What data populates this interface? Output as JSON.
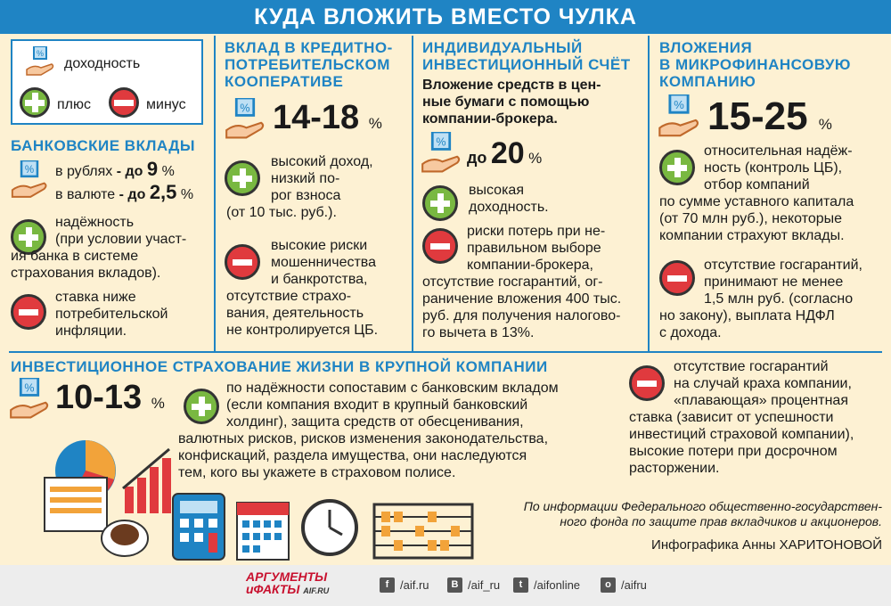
{
  "title": "КУДА ВЛОЖИТЬ ВМЕСТО ЧУЛКА",
  "legend": {
    "yield": "доходность",
    "plus": "плюс",
    "minus": "минус"
  },
  "bank": {
    "heading": "БАНКОВСКИЕ ВКЛАДЫ",
    "rub_label": "в рублях",
    "rub_prefix": "- до",
    "rub_value": "9",
    "rub_pct": "%",
    "cur_label": "в валюте",
    "cur_prefix": "- до",
    "cur_value": "2,5",
    "cur_pct": "%",
    "plus_lines": [
      "надёжность",
      "(при условии участ-",
      "ия банка в системе",
      "страхования вкладов)."
    ],
    "minus_lines": [
      "ставка ниже",
      "потребительской",
      "инфляции."
    ]
  },
  "coop": {
    "heading_lines": [
      "ВКЛАД В КРЕДИТНО-",
      "ПОТРЕБИТЕЛЬСКОМ",
      "КООПЕРАТИВЕ"
    ],
    "value": "14-18",
    "pct": "%",
    "plus_lines": [
      "высокий доход,",
      "низкий по-",
      "рог взноса",
      "(от 10 тыс. руб.)."
    ],
    "minus_lines": [
      "высокие риски",
      "мошенничества",
      "и банкротства,",
      "отсутствие страхо-",
      "вания, деятельность",
      "не контролируется ЦБ."
    ]
  },
  "iis": {
    "heading_lines": [
      "ИНДИВИДУАЛЬНЫЙ",
      "ИНВЕСТИЦИОННЫЙ СЧЁТ"
    ],
    "desc_lines": [
      "Вложение средств в цен-",
      "ные бумаги с помощью",
      "компании-брокера."
    ],
    "prefix": "до",
    "value": "20",
    "pct": "%",
    "plus_lines": [
      "высокая",
      "доходность."
    ],
    "minus_lines": [
      "риски потерь при не-",
      "правильном выборе",
      "компании-брокера,",
      "отсутствие госгарантий, ог-",
      "раничение вложения 400 тыс.",
      "руб. для получения налогово-",
      "го вычета в 13%."
    ]
  },
  "mfo": {
    "heading_lines": [
      "ВЛОЖЕНИЯ",
      "В МИКРОФИНАНСОВУЮ",
      "КОМПАНИЮ"
    ],
    "value": "15-25",
    "pct": "%",
    "plus_lines": [
      "относительная надёж-",
      "ность (контроль ЦБ),",
      "отбор компаний",
      "по сумме уставного капитала",
      "(от 70 млн руб.), некоторые",
      "компании страхуют вклады."
    ],
    "minus_lines": [
      "отсутствие госгарантий,",
      "принимают не менее",
      "1,5 млн руб. (согласно",
      "но закону), выплата НДФЛ",
      "с дохода."
    ]
  },
  "insurance": {
    "heading": "ИНВЕСТИЦИОННОЕ СТРАХОВАНИЕ ЖИЗНИ В КРУПНОЙ КОМПАНИИ",
    "value": "10-13",
    "pct": "%",
    "plus_lines": [
      "по надёжности сопоставим с банковским вкладом",
      "(если компания входит в крупный банковский",
      "холдинг), защита средств от обесценивания,",
      "валютных рисков, рисков изменения законодательства,",
      "конфискаций, раздела имущества, они наследуются",
      "тем, кого вы укажете в страховом полисе."
    ],
    "minus_lines": [
      "отсутствие госгарантий",
      "на случай краха компании,",
      "«плавающая» процентная",
      "ставка (зависит от успешности",
      "инвестиций страховой компании),",
      "высокие потери при досрочном",
      "расторжении."
    ]
  },
  "source_lines": [
    "По информации Федерального общественно-государствен-",
    "ного фонда по защите прав вкладчиков и  акционеров."
  ],
  "credit": "Инфографика Анны ХАРИТОНОВОЙ",
  "footer": {
    "logo_line1": "АРГУМЕНТЫ",
    "logo_line2": "иФАКТЫ",
    "logo_site": "AIF.RU",
    "socials": [
      {
        "glyph": "f",
        "handle": "/aif.ru"
      },
      {
        "glyph": "B",
        "handle": "/aif_ru"
      },
      {
        "glyph": "t",
        "handle": "/aifonline"
      },
      {
        "glyph": "o",
        "handle": "/aifru"
      }
    ]
  },
  "colors": {
    "accent": "#1f84c4",
    "plus": "#79b841",
    "minus": "#e03a3e",
    "background": "#fdf1d3"
  }
}
